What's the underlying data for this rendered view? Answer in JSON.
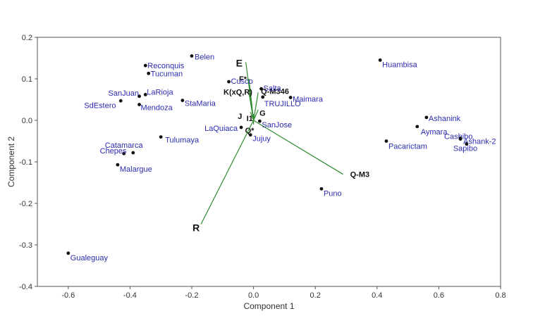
{
  "chart_data": {
    "type": "scatter",
    "subtype": "biplot",
    "xlabel": "Component 1",
    "ylabel": "Component 2",
    "xlim": [
      -0.7,
      0.8
    ],
    "ylim": [
      -0.4,
      0.2
    ],
    "xticks": [
      -0.6,
      -0.4,
      -0.2,
      0.0,
      0.2,
      0.4,
      0.6,
      0.8
    ],
    "yticks": [
      -0.4,
      -0.3,
      -0.2,
      -0.1,
      0.0,
      0.1,
      0.2
    ],
    "xtick_labels": [
      "-0.6",
      "-0.4",
      "-0.2",
      "0.0",
      "0.2",
      "0.4",
      "0.6",
      "0.8"
    ],
    "ytick_labels": [
      "-0.4",
      "-0.3",
      "-0.2",
      "-0.1",
      "0.0",
      "0.1",
      "0.2"
    ],
    "grid": false,
    "point_color": "#111111",
    "label_color": "#2b2bb0",
    "vector_color": "#2e8b2e",
    "points": [
      {
        "label": "Belen",
        "x": -0.2,
        "y": 0.155
      },
      {
        "label": "Reconquis",
        "x": -0.35,
        "y": 0.132
      },
      {
        "label": "Tucuman",
        "x": -0.34,
        "y": 0.113
      },
      {
        "label": "SanJuan",
        "x": -0.37,
        "y": 0.058
      },
      {
        "label": "LaRioja",
        "x": -0.35,
        "y": 0.062
      },
      {
        "label": "SdEstero",
        "x": -0.43,
        "y": 0.047
      },
      {
        "label": "Mendoza",
        "x": -0.37,
        "y": 0.038
      },
      {
        "label": "StaMaria",
        "x": -0.23,
        "y": 0.048
      },
      {
        "label": "Cusco",
        "x": -0.08,
        "y": 0.093
      },
      {
        "label": "Salta",
        "x": 0.025,
        "y": 0.076
      },
      {
        "label": "TRUJILLO",
        "x": 0.03,
        "y": 0.056
      },
      {
        "label": "Maimara",
        "x": 0.12,
        "y": 0.055
      },
      {
        "label": "SanJose",
        "x": 0.02,
        "y": -0.002
      },
      {
        "label": "LaQuiaca",
        "x": -0.04,
        "y": -0.017
      },
      {
        "label": "Jujuy",
        "x": -0.01,
        "y": -0.035
      },
      {
        "label": "Tulumaya",
        "x": -0.3,
        "y": -0.04
      },
      {
        "label": "Catamarca",
        "x": -0.39,
        "y": -0.078
      },
      {
        "label": "Chepes",
        "x": -0.42,
        "y": -0.08
      },
      {
        "label": "Malargue",
        "x": -0.44,
        "y": -0.107
      },
      {
        "label": "Gualeguay",
        "x": -0.6,
        "y": -0.32
      },
      {
        "label": "Huambisa",
        "x": 0.41,
        "y": 0.145
      },
      {
        "label": "Ashanink",
        "x": 0.56,
        "y": 0.007
      },
      {
        "label": "Aymara",
        "x": 0.53,
        "y": -0.015
      },
      {
        "label": "Cashibo",
        "x": 0.67,
        "y": -0.043
      },
      {
        "label": "Ashank-2",
        "x": 0.67,
        "y": -0.045
      },
      {
        "label": "Sapibo",
        "x": 0.69,
        "y": -0.057
      },
      {
        "label": "Pacarictam",
        "x": 0.43,
        "y": -0.05
      },
      {
        "label": "Puno",
        "x": 0.22,
        "y": -0.165
      }
    ],
    "vectors": [
      {
        "label": "E",
        "x": -0.025,
        "y": 0.14,
        "size": "large"
      },
      {
        "label": "F*",
        "x": -0.015,
        "y": 0.1,
        "size": "small"
      },
      {
        "label": "K(xQ,R)",
        "x": -0.015,
        "y": 0.067,
        "size": "small"
      },
      {
        "label": "Q-M346",
        "x": 0.015,
        "y": 0.067,
        "size": "small"
      },
      {
        "label": "J",
        "x": -0.01,
        "y": 0.02,
        "size": "small"
      },
      {
        "label": "I1",
        "x": 0.0,
        "y": 0.015,
        "size": "small"
      },
      {
        "label": "G",
        "x": 0.015,
        "y": 0.025,
        "size": "small"
      },
      {
        "label": "Q*",
        "x": 0.0,
        "y": -0.01,
        "size": "small"
      },
      {
        "label": "Q-M3",
        "x": 0.29,
        "y": -0.13,
        "size": "small"
      },
      {
        "label": "R",
        "x": -0.17,
        "y": -0.25,
        "size": "large"
      }
    ]
  }
}
